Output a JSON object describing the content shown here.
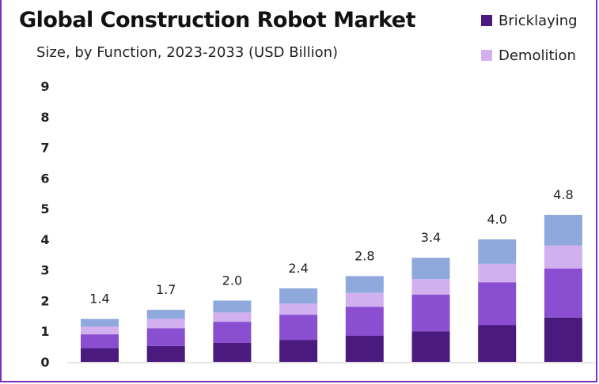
{
  "chart_data": {
    "type": "bar",
    "stacked": true,
    "title": "Global Construction Robot Market",
    "subtitle": "Size, by Function, 2023-2033 (USD Billion)",
    "categories": [
      "",
      "",
      "",
      "",
      "",
      "",
      "",
      ""
    ],
    "totals": [
      1.4,
      1.7,
      2.0,
      2.4,
      2.8,
      3.4,
      4.0,
      4.8
    ],
    "series": [
      {
        "name": "Bricklaying",
        "color": "#4b1a7f",
        "values": [
          0.45,
          0.52,
          0.62,
          0.72,
          0.85,
          1.0,
          1.2,
          1.45
        ]
      },
      {
        "name": "",
        "color": "#8a4fd1",
        "values": [
          0.45,
          0.58,
          0.69,
          0.82,
          0.95,
          1.2,
          1.4,
          1.6
        ]
      },
      {
        "name": "Demolition",
        "color": "#d2b0f0",
        "values": [
          0.25,
          0.3,
          0.3,
          0.36,
          0.45,
          0.5,
          0.6,
          0.75
        ]
      },
      {
        "name": "",
        "color": "#90a9dd",
        "values": [
          0.25,
          0.3,
          0.39,
          0.5,
          0.55,
          0.7,
          0.8,
          1.0
        ]
      }
    ],
    "legend": [
      {
        "name": "Bricklaying",
        "color": "#4b1a7f"
      },
      {
        "name": "Demolition",
        "color": "#d2b0f0"
      }
    ],
    "yticks": [
      "0",
      "1",
      "2",
      "3",
      "4",
      "5",
      "6",
      "7",
      "8",
      "9"
    ],
    "ylim": [
      0,
      9
    ],
    "grid": false,
    "legend_position": "top-right"
  }
}
